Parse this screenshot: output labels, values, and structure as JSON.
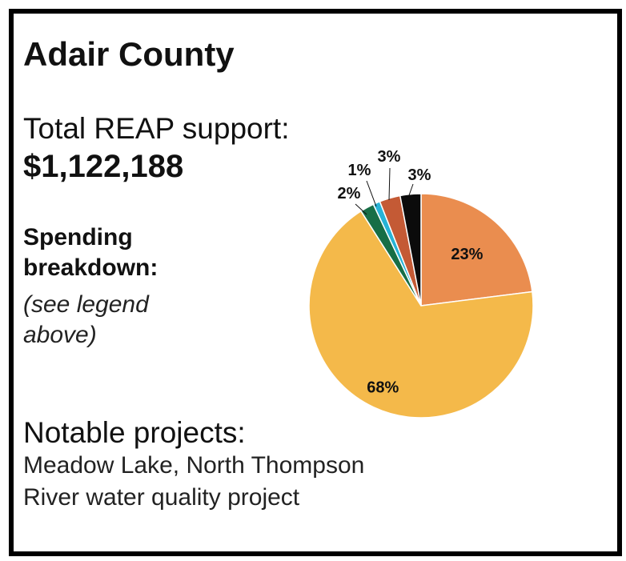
{
  "card": {
    "title": "Adair County",
    "total_label": "Total REAP support:",
    "total_value": "$1,122,188",
    "spending_line1": "Spending",
    "spending_line2": "breakdown:",
    "legend_note_line1": "(see legend",
    "legend_note_line2": "above)",
    "projects_label": "Notable projects:",
    "projects_line1": "Meadow Lake, North Thompson",
    "projects_line2": "River water quality project"
  },
  "chart_data": {
    "type": "pie",
    "title": "",
    "slices": [
      {
        "value": 23,
        "label": "23%",
        "color": "#EA8D4F"
      },
      {
        "value": 68,
        "label": "68%",
        "color": "#F4B94A"
      },
      {
        "value": 2,
        "label": "2%",
        "color": "#176E46"
      },
      {
        "value": 1,
        "label": "1%",
        "color": "#27B3D6"
      },
      {
        "value": 3,
        "label": "3%",
        "color": "#C45A35"
      },
      {
        "value": 3,
        "label": "3%",
        "color": "#0B0B0B"
      }
    ]
  }
}
